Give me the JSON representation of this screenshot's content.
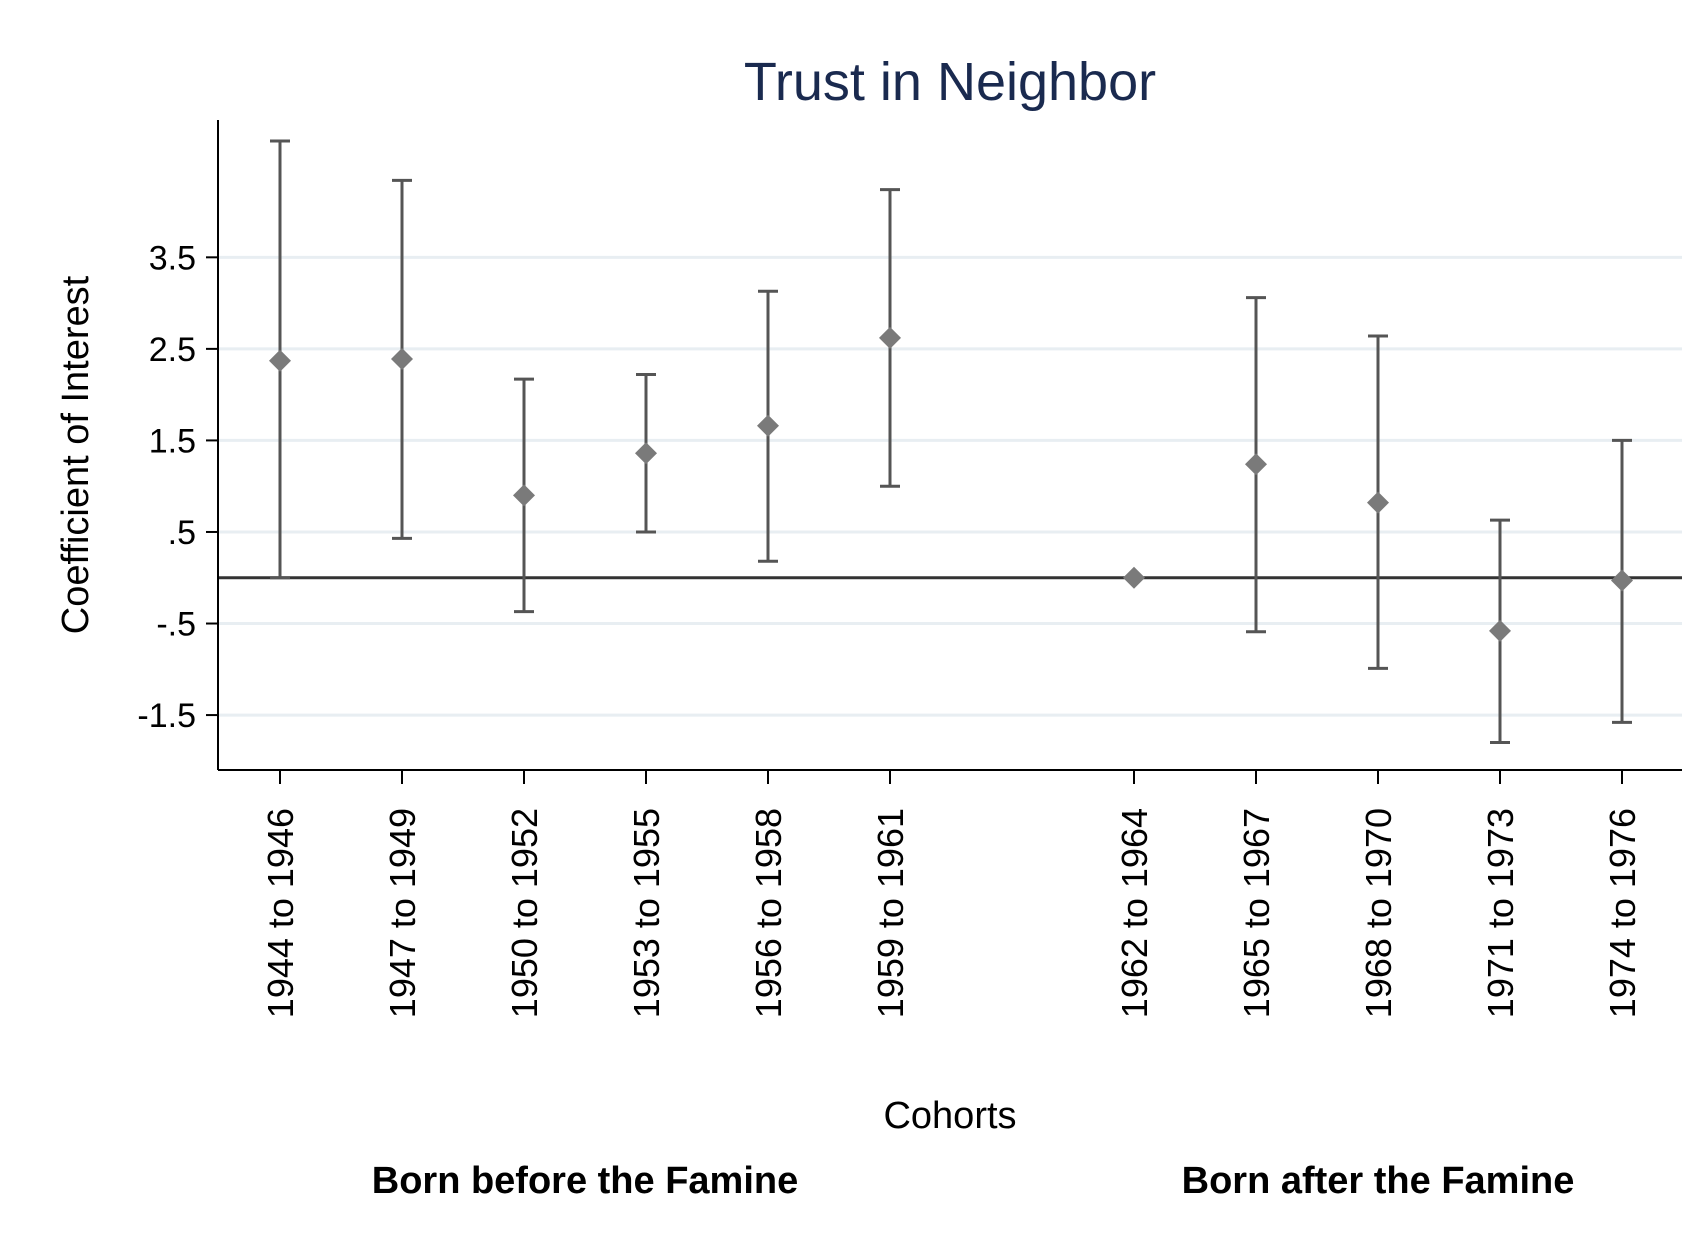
{
  "chart_data": {
    "type": "scatter",
    "title": "Trust in Neighbor",
    "xlabel": "Cohorts",
    "ylabel": "Coefficient of Interest",
    "ylim": [
      -2.1,
      5.0
    ],
    "yticks": [
      3.5,
      2.5,
      1.5,
      0.5,
      -0.5,
      -1.5
    ],
    "ytick_labels": [
      "3.5",
      "2.5",
      "1.5",
      ".5",
      "-.5",
      "-1.5"
    ],
    "grid": true,
    "reference_line": 0,
    "marker_color": "#7a7a7a",
    "errorbar_color": "#555555",
    "grid_color": "#e8eef2",
    "categories": [
      "1944 to 1946",
      "1947 to 1949",
      "1950 to 1952",
      "1953 to 1955",
      "1956 to 1958",
      "1959 to 1961",
      "1962 to 1964",
      "1965 to 1967",
      "1968 to 1970",
      "1971 to 1973",
      "1974 to 1976"
    ],
    "x_positions": [
      1,
      2,
      3,
      4,
      5,
      6,
      8,
      9,
      10,
      11,
      12
    ],
    "series": [
      {
        "values": [
          2.37,
          2.39,
          0.9,
          1.36,
          1.66,
          2.62,
          0.0,
          1.24,
          0.82,
          -0.58,
          -0.03
        ],
        "ci_low": [
          0.0,
          0.43,
          -0.37,
          0.5,
          0.18,
          1.0,
          0.0,
          -0.59,
          -0.99,
          -1.8,
          -1.58
        ],
        "ci_high": [
          4.77,
          4.34,
          2.17,
          2.22,
          3.13,
          4.24,
          0.0,
          3.06,
          2.64,
          0.63,
          1.5
        ]
      }
    ],
    "group_labels": [
      {
        "text": "Born before the Famine",
        "center_x": 3.5
      },
      {
        "text": "Born after the Famine",
        "center_x": 10
      }
    ]
  }
}
